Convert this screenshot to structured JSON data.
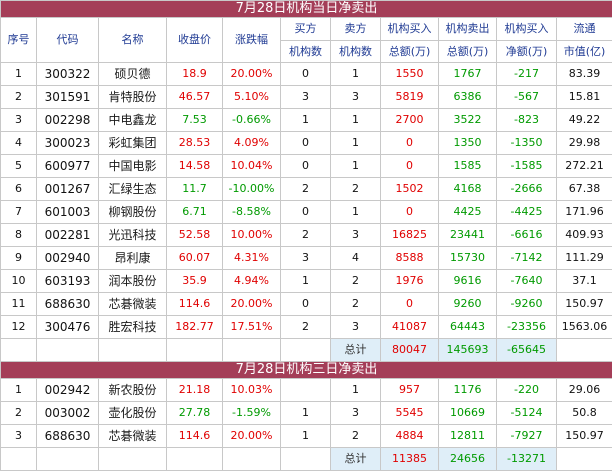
{
  "colors": {
    "title_bg": "#a43e58",
    "header_text": "#1f3a93",
    "up": "#e00000",
    "down": "#009a00",
    "sum_bg": "#dfeef8"
  },
  "section1": {
    "title": "7月28日机构当日净卖出",
    "headers": {
      "seq": "序号",
      "code": "代码",
      "name": "名称",
      "close": "收盘价",
      "change": "涨跌幅",
      "buy_cnt_1": "买方",
      "buy_cnt_2": "机构数",
      "sell_cnt_1": "卖方",
      "sell_cnt_2": "机构数",
      "buy_amt_1": "机构买入",
      "buy_amt_2": "总额(万)",
      "sell_amt_1": "机构卖出",
      "sell_amt_2": "总额(万)",
      "net_1": "机构买入",
      "net_2": "净额(万)",
      "mcap_1": "流通",
      "mcap_2": "市值(亿)"
    },
    "rows": [
      {
        "seq": "1",
        "code": "300322",
        "name": "硕贝德",
        "close": "18.9",
        "change": "20.00%",
        "buy_cnt": "0",
        "sell_cnt": "1",
        "buy_amt": "1550",
        "sell_amt": "1767",
        "net": "-217",
        "mcap": "83.39",
        "dir": "up"
      },
      {
        "seq": "2",
        "code": "301591",
        "name": "肯特股份",
        "close": "46.57",
        "change": "5.10%",
        "buy_cnt": "3",
        "sell_cnt": "3",
        "buy_amt": "5819",
        "sell_amt": "6386",
        "net": "-567",
        "mcap": "15.81",
        "dir": "up"
      },
      {
        "seq": "3",
        "code": "002298",
        "name": "中电鑫龙",
        "close": "7.53",
        "change": "-0.66%",
        "buy_cnt": "1",
        "sell_cnt": "1",
        "buy_amt": "2700",
        "sell_amt": "3522",
        "net": "-823",
        "mcap": "49.22",
        "dir": "down"
      },
      {
        "seq": "4",
        "code": "300023",
        "name": "彩虹集团",
        "close": "28.53",
        "change": "4.09%",
        "buy_cnt": "0",
        "sell_cnt": "1",
        "buy_amt": "0",
        "sell_amt": "1350",
        "net": "-1350",
        "mcap": "29.98",
        "dir": "up"
      },
      {
        "seq": "5",
        "code": "600977",
        "name": "中国电影",
        "close": "14.58",
        "change": "10.04%",
        "buy_cnt": "0",
        "sell_cnt": "1",
        "buy_amt": "0",
        "sell_amt": "1585",
        "net": "-1585",
        "mcap": "272.21",
        "dir": "up"
      },
      {
        "seq": "6",
        "code": "001267",
        "name": "汇绿生态",
        "close": "11.7",
        "change": "-10.00%",
        "buy_cnt": "2",
        "sell_cnt": "2",
        "buy_amt": "1502",
        "sell_amt": "4168",
        "net": "-2666",
        "mcap": "67.38",
        "dir": "down"
      },
      {
        "seq": "7",
        "code": "601003",
        "name": "柳钢股份",
        "close": "6.71",
        "change": "-8.58%",
        "buy_cnt": "0",
        "sell_cnt": "1",
        "buy_amt": "0",
        "sell_amt": "4425",
        "net": "-4425",
        "mcap": "171.96",
        "dir": "down"
      },
      {
        "seq": "8",
        "code": "002281",
        "name": "光迅科技",
        "close": "52.58",
        "change": "10.00%",
        "buy_cnt": "2",
        "sell_cnt": "3",
        "buy_amt": "16825",
        "sell_amt": "23441",
        "net": "-6616",
        "mcap": "409.93",
        "dir": "up"
      },
      {
        "seq": "9",
        "code": "002940",
        "name": "昂利康",
        "close": "60.07",
        "change": "4.31%",
        "buy_cnt": "3",
        "sell_cnt": "4",
        "buy_amt": "8588",
        "sell_amt": "15730",
        "net": "-7142",
        "mcap": "111.29",
        "dir": "up"
      },
      {
        "seq": "10",
        "code": "603193",
        "name": "润本股份",
        "close": "35.9",
        "change": "4.94%",
        "buy_cnt": "1",
        "sell_cnt": "2",
        "buy_amt": "1976",
        "sell_amt": "9616",
        "net": "-7640",
        "mcap": "37.1",
        "dir": "up"
      },
      {
        "seq": "11",
        "code": "688630",
        "name": "芯碁微装",
        "close": "114.6",
        "change": "20.00%",
        "buy_cnt": "0",
        "sell_cnt": "2",
        "buy_amt": "0",
        "sell_amt": "9260",
        "net": "-9260",
        "mcap": "150.97",
        "dir": "up"
      },
      {
        "seq": "12",
        "code": "300476",
        "name": "胜宏科技",
        "close": "182.77",
        "change": "17.51%",
        "buy_cnt": "2",
        "sell_cnt": "3",
        "buy_amt": "41087",
        "sell_amt": "64443",
        "net": "-23356",
        "mcap": "1563.06",
        "dir": "up"
      }
    ],
    "total": {
      "label": "总计",
      "buy_amt": "80047",
      "sell_amt": "145693",
      "net": "-65645"
    }
  },
  "section2": {
    "title": "7月28日机构三日净卖出",
    "rows": [
      {
        "seq": "1",
        "code": "002942",
        "name": "新农股份",
        "close": "21.18",
        "change": "10.03%",
        "buy_cnt": "",
        "sell_cnt": "1",
        "buy_amt": "957",
        "sell_amt": "1176",
        "net": "-220",
        "mcap": "29.06",
        "dir": "up"
      },
      {
        "seq": "2",
        "code": "003002",
        "name": "壶化股份",
        "close": "27.78",
        "change": "-1.59%",
        "buy_cnt": "1",
        "sell_cnt": "3",
        "buy_amt": "5545",
        "sell_amt": "10669",
        "net": "-5124",
        "mcap": "50.8",
        "dir": "down"
      },
      {
        "seq": "3",
        "code": "688630",
        "name": "芯碁微装",
        "close": "114.6",
        "change": "20.00%",
        "buy_cnt": "1",
        "sell_cnt": "2",
        "buy_amt": "4884",
        "sell_amt": "12811",
        "net": "-7927",
        "mcap": "150.97",
        "dir": "up"
      }
    ],
    "total": {
      "label": "总计",
      "buy_amt": "11385",
      "sell_amt": "24656",
      "net": "-13271"
    }
  }
}
